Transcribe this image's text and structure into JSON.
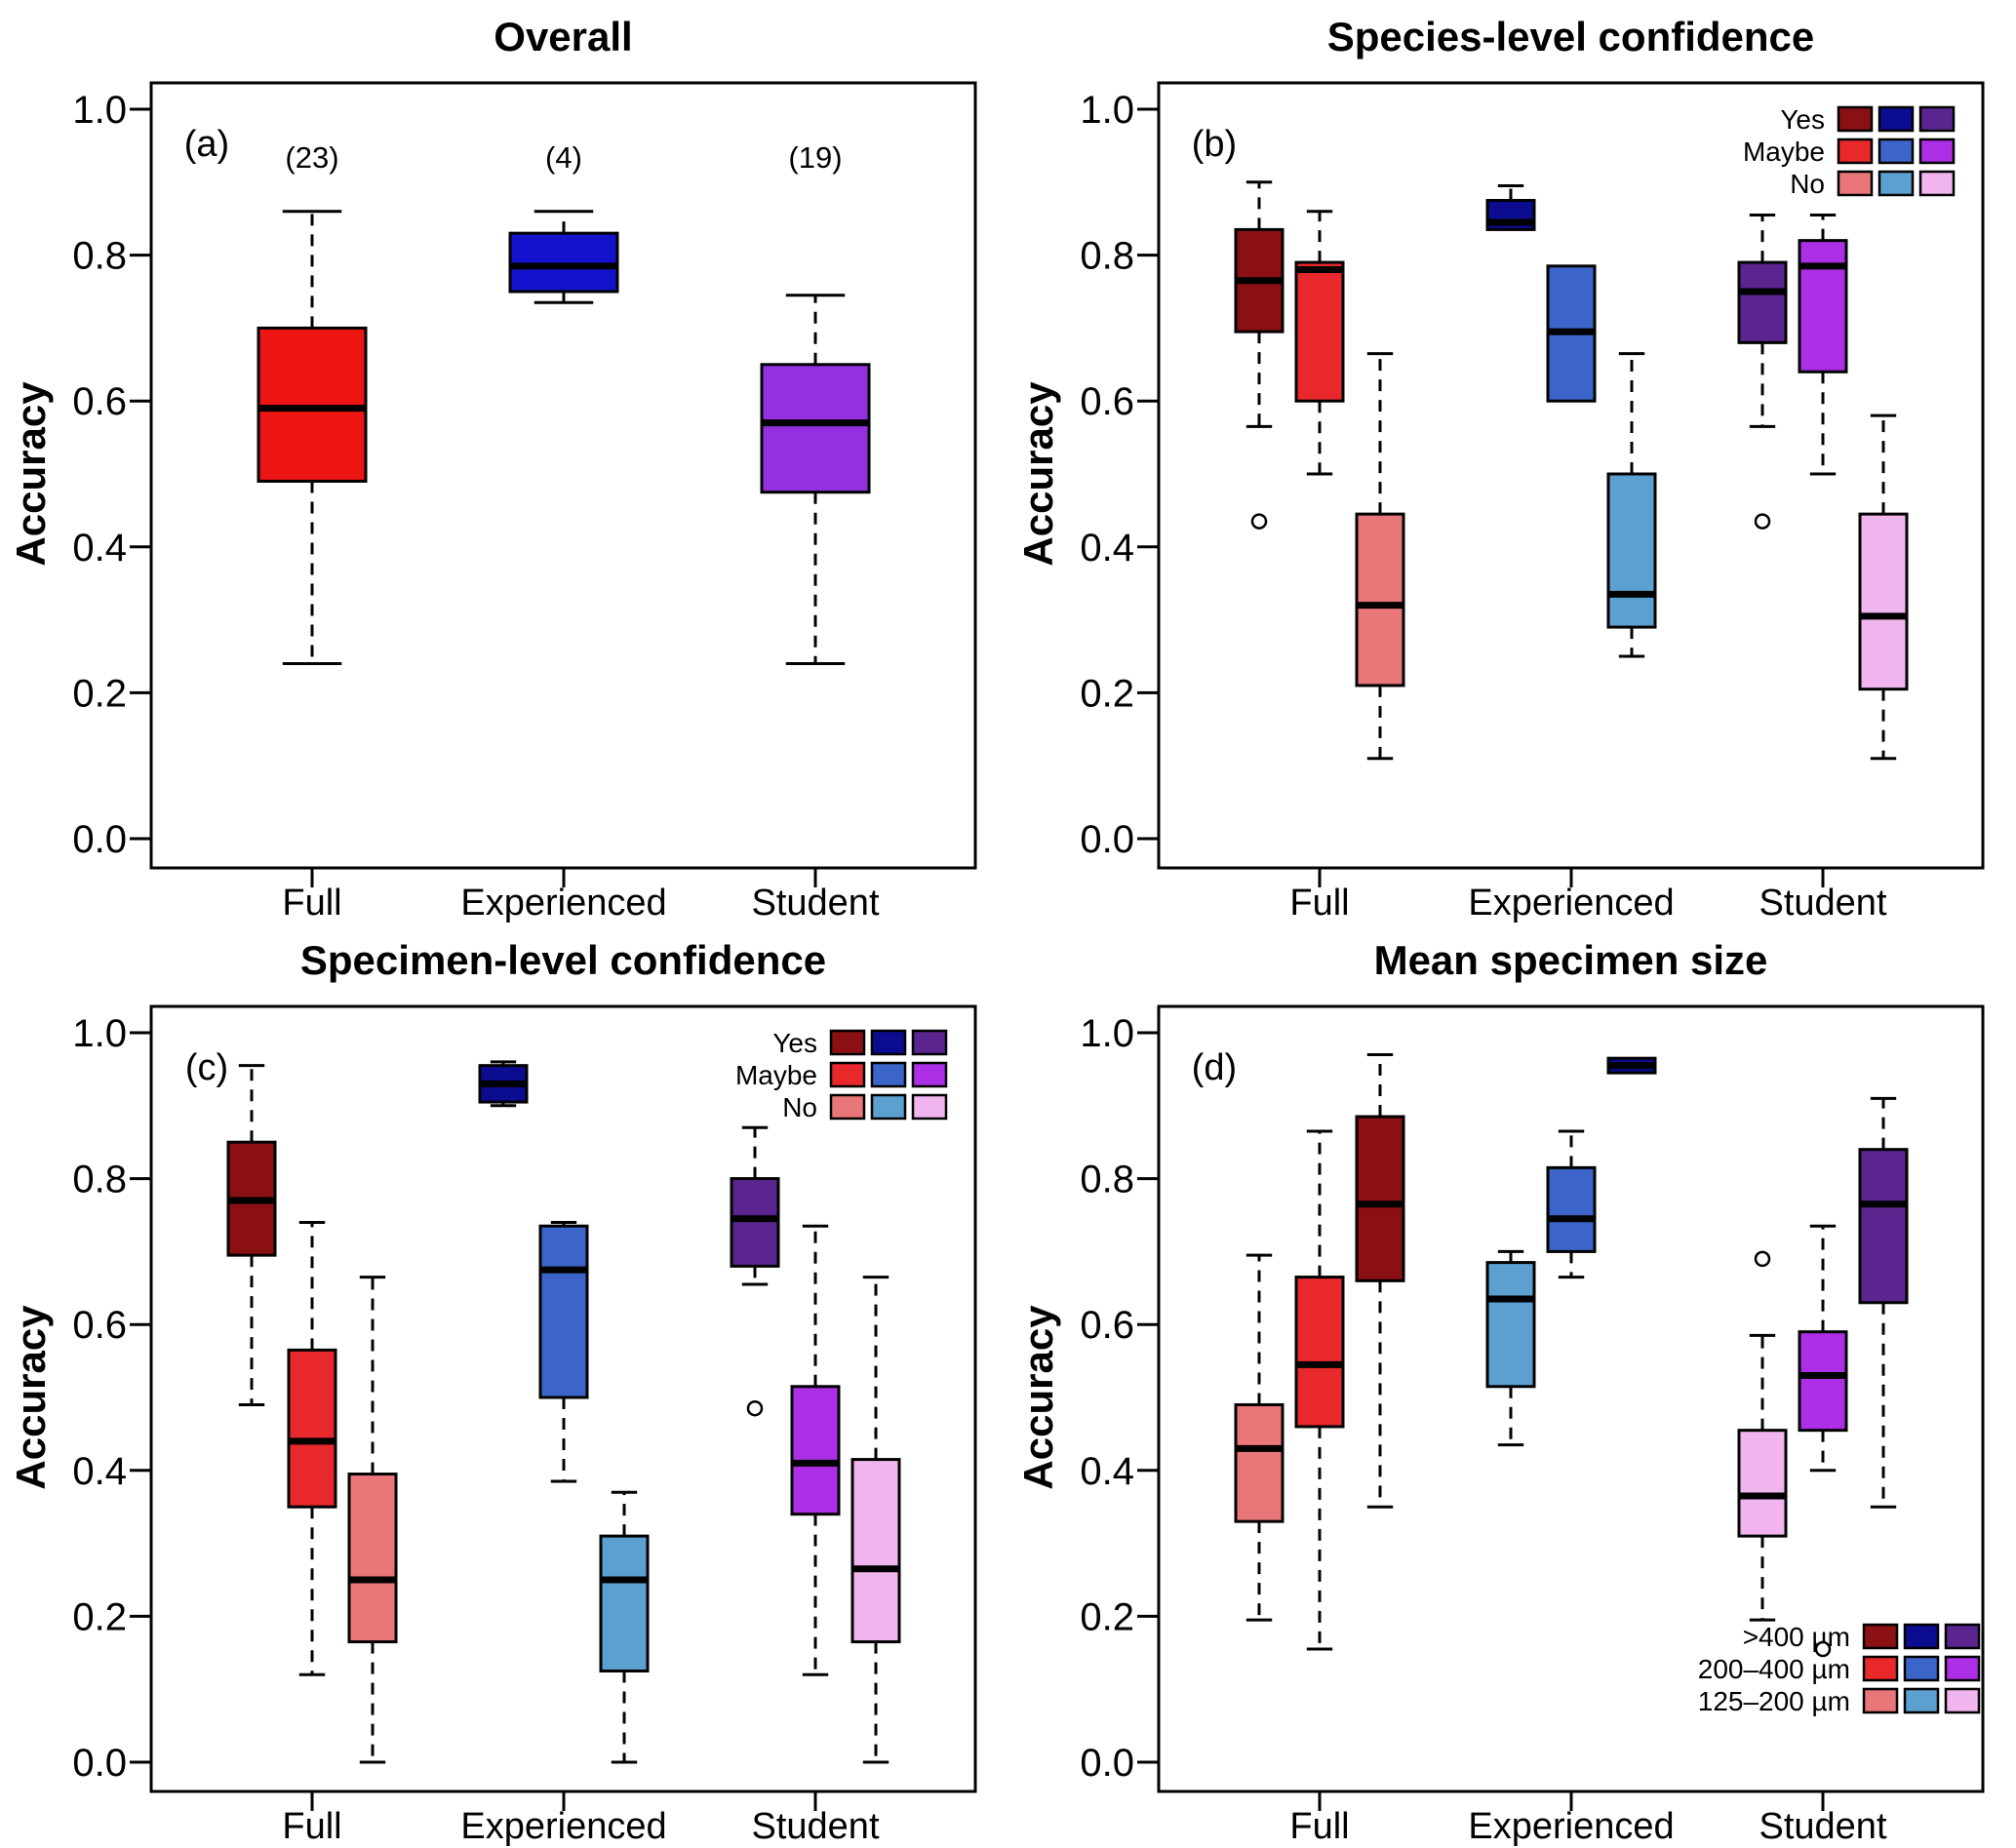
{
  "figure": {
    "type": "boxplot-figure",
    "panel_count": 4,
    "background": "#ffffff",
    "line_color": "#000000"
  },
  "palette": {
    "red_dark": "#8B1013",
    "red_mid": "#E8282B",
    "red_light": "#E97678",
    "blue_dark": "#0C0C90",
    "blue_mid": "#3C65C9",
    "blue_light": "#5CA0CF",
    "purple_dark": "#5B2590",
    "purple_mid": "#AC2FE6",
    "purple_light": "#F0B4EE",
    "panel_a_red": "#EE1515",
    "panel_a_blue": "#1313CE",
    "panel_a_purple": "#9430E0"
  },
  "chart_data": [
    {
      "id": "a",
      "type": "boxplot",
      "title": "Overall",
      "panel_label": "(a)",
      "ylabel": "Accuracy",
      "ylim": [
        0,
        1
      ],
      "yticks": [
        0,
        0.2,
        0.4,
        0.6,
        0.8,
        1.0
      ],
      "ytick_labels": [
        "0.0",
        "0.2",
        "0.4",
        "0.6",
        "0.8",
        "1.0"
      ],
      "categories": [
        "Full",
        "Experienced",
        "Student"
      ],
      "counts": [
        "(23)",
        "(4)",
        "(19)"
      ],
      "grid": false,
      "legend": null,
      "groups": [
        {
          "category": "Full",
          "boxes": [
            {
              "series": "Overall",
              "color": "#EE1515",
              "whislo": 0.24,
              "q1": 0.49,
              "med": 0.59,
              "q3": 0.7,
              "whishi": 0.86,
              "outliers": []
            }
          ]
        },
        {
          "category": "Experienced",
          "boxes": [
            {
              "series": "Overall",
              "color": "#1313CE",
              "whislo": 0.735,
              "q1": 0.75,
              "med": 0.785,
              "q3": 0.83,
              "whishi": 0.86,
              "outliers": []
            }
          ]
        },
        {
          "category": "Student",
          "boxes": [
            {
              "series": "Overall",
              "color": "#9430E0",
              "whislo": 0.24,
              "q1": 0.475,
              "med": 0.57,
              "q3": 0.65,
              "whishi": 0.745,
              "outliers": []
            }
          ]
        }
      ]
    },
    {
      "id": "b",
      "type": "boxplot",
      "title": "Species-level confidence",
      "panel_label": "(b)",
      "ylabel": "Accuracy",
      "ylim": [
        0,
        1
      ],
      "yticks": [
        0,
        0.2,
        0.4,
        0.6,
        0.8,
        1.0
      ],
      "ytick_labels": [
        "0.0",
        "0.2",
        "0.4",
        "0.6",
        "0.8",
        "1.0"
      ],
      "categories": [
        "Full",
        "Experienced",
        "Student"
      ],
      "counts": null,
      "grid": false,
      "legend": {
        "position": "top-right",
        "labels": [
          "Yes",
          "Maybe",
          "No"
        ],
        "colors": [
          [
            "#8B1013",
            "#0C0C90",
            "#5B2590"
          ],
          [
            "#E8282B",
            "#3C65C9",
            "#AC2FE6"
          ],
          [
            "#E97678",
            "#5CA0CF",
            "#F0B4EE"
          ]
        ]
      },
      "groups": [
        {
          "category": "Full",
          "boxes": [
            {
              "series": "Yes",
              "color": "#8B1013",
              "whislo": 0.565,
              "q1": 0.695,
              "med": 0.765,
              "q3": 0.835,
              "whishi": 0.9,
              "outliers": [
                0.435
              ]
            },
            {
              "series": "Maybe",
              "color": "#E8282B",
              "whislo": 0.5,
              "q1": 0.6,
              "med": 0.78,
              "q3": 0.79,
              "whishi": 0.86,
              "outliers": []
            },
            {
              "series": "No",
              "color": "#E97678",
              "whislo": 0.11,
              "q1": 0.21,
              "med": 0.32,
              "q3": 0.445,
              "whishi": 0.665,
              "outliers": []
            }
          ]
        },
        {
          "category": "Experienced",
          "boxes": [
            {
              "series": "Yes",
              "color": "#0C0C90",
              "whislo": 0.835,
              "q1": 0.835,
              "med": 0.845,
              "q3": 0.875,
              "whishi": 0.895,
              "outliers": []
            },
            {
              "series": "Maybe",
              "color": "#3C65C9",
              "whislo": 0.6,
              "q1": 0.6,
              "med": 0.695,
              "q3": 0.785,
              "whishi": 0.785,
              "outliers": []
            },
            {
              "series": "No",
              "color": "#5CA0CF",
              "whislo": 0.25,
              "q1": 0.29,
              "med": 0.335,
              "q3": 0.5,
              "whishi": 0.665,
              "outliers": []
            }
          ]
        },
        {
          "category": "Student",
          "boxes": [
            {
              "series": "Yes",
              "color": "#5B2590",
              "whislo": 0.565,
              "q1": 0.68,
              "med": 0.75,
              "q3": 0.79,
              "whishi": 0.855,
              "outliers": [
                0.435
              ]
            },
            {
              "series": "Maybe",
              "color": "#AC2FE6",
              "whislo": 0.5,
              "q1": 0.64,
              "med": 0.785,
              "q3": 0.82,
              "whishi": 0.855,
              "outliers": []
            },
            {
              "series": "No",
              "color": "#F0B4EE",
              "whislo": 0.11,
              "q1": 0.205,
              "med": 0.305,
              "q3": 0.445,
              "whishi": 0.58,
              "outliers": []
            }
          ]
        }
      ]
    },
    {
      "id": "c",
      "type": "boxplot",
      "title": "Specimen-level confidence",
      "panel_label": "(c)",
      "ylabel": "Accuracy",
      "ylim": [
        0,
        1
      ],
      "yticks": [
        0,
        0.2,
        0.4,
        0.6,
        0.8,
        1.0
      ],
      "ytick_labels": [
        "0.0",
        "0.2",
        "0.4",
        "0.6",
        "0.8",
        "1.0"
      ],
      "categories": [
        "Full",
        "Experienced",
        "Student"
      ],
      "counts": null,
      "grid": false,
      "legend": {
        "position": "top-right",
        "labels": [
          "Yes",
          "Maybe",
          "No"
        ],
        "colors": [
          [
            "#8B1013",
            "#0C0C90",
            "#5B2590"
          ],
          [
            "#E8282B",
            "#3C65C9",
            "#AC2FE6"
          ],
          [
            "#E97678",
            "#5CA0CF",
            "#F0B4EE"
          ]
        ]
      },
      "groups": [
        {
          "category": "Full",
          "boxes": [
            {
              "series": "Yes",
              "color": "#8B1013",
              "whislo": 0.49,
              "q1": 0.695,
              "med": 0.77,
              "q3": 0.85,
              "whishi": 0.955,
              "outliers": []
            },
            {
              "series": "Maybe",
              "color": "#E8282B",
              "whislo": 0.12,
              "q1": 0.35,
              "med": 0.44,
              "q3": 0.565,
              "whishi": 0.74,
              "outliers": []
            },
            {
              "series": "No",
              "color": "#E97678",
              "whislo": 0.0,
              "q1": 0.165,
              "med": 0.25,
              "q3": 0.395,
              "whishi": 0.665,
              "outliers": []
            }
          ]
        },
        {
          "category": "Experienced",
          "boxes": [
            {
              "series": "Yes",
              "color": "#0C0C90",
              "whislo": 0.9,
              "q1": 0.905,
              "med": 0.93,
              "q3": 0.955,
              "whishi": 0.96,
              "outliers": []
            },
            {
              "series": "Maybe",
              "color": "#3C65C9",
              "whislo": 0.385,
              "q1": 0.5,
              "med": 0.675,
              "q3": 0.735,
              "whishi": 0.74,
              "outliers": []
            },
            {
              "series": "No",
              "color": "#5CA0CF",
              "whislo": 0.0,
              "q1": 0.125,
              "med": 0.25,
              "q3": 0.31,
              "whishi": 0.37,
              "outliers": []
            }
          ]
        },
        {
          "category": "Student",
          "boxes": [
            {
              "series": "Yes",
              "color": "#5B2590",
              "whislo": 0.655,
              "q1": 0.68,
              "med": 0.745,
              "q3": 0.8,
              "whishi": 0.87,
              "outliers": [
                0.485
              ]
            },
            {
              "series": "Maybe",
              "color": "#AC2FE6",
              "whislo": 0.12,
              "q1": 0.34,
              "med": 0.41,
              "q3": 0.515,
              "whishi": 0.735,
              "outliers": []
            },
            {
              "series": "No",
              "color": "#F0B4EE",
              "whislo": 0.0,
              "q1": 0.165,
              "med": 0.265,
              "q3": 0.415,
              "whishi": 0.665,
              "outliers": []
            }
          ]
        }
      ]
    },
    {
      "id": "d",
      "type": "boxplot",
      "title": "Mean specimen size",
      "panel_label": "(d)",
      "ylabel": "Accuracy",
      "ylim": [
        0,
        1
      ],
      "yticks": [
        0,
        0.2,
        0.4,
        0.6,
        0.8,
        1.0
      ],
      "ytick_labels": [
        "0.0",
        "0.2",
        "0.4",
        "0.6",
        "0.8",
        "1.0"
      ],
      "categories": [
        "Full",
        "Experienced",
        "Student"
      ],
      "counts": null,
      "grid": false,
      "legend": {
        "position": "bottom-right",
        "labels": [
          ">400 µm",
          "200–400 µm",
          "125–200 µm"
        ],
        "colors": [
          [
            "#8B1013",
            "#0C0C90",
            "#5B2590"
          ],
          [
            "#E8282B",
            "#3C65C9",
            "#AC2FE6"
          ],
          [
            "#E97678",
            "#5CA0CF",
            "#F0B4EE"
          ]
        ]
      },
      "groups": [
        {
          "category": "Full",
          "boxes": [
            {
              "series": "125–200 µm",
              "color": "#E97678",
              "whislo": 0.195,
              "q1": 0.33,
              "med": 0.43,
              "q3": 0.49,
              "whishi": 0.695,
              "outliers": []
            },
            {
              "series": "200–400 µm",
              "color": "#E8282B",
              "whislo": 0.155,
              "q1": 0.46,
              "med": 0.545,
              "q3": 0.665,
              "whishi": 0.865,
              "outliers": []
            },
            {
              "series": ">400 µm",
              "color": "#8B1013",
              "whislo": 0.35,
              "q1": 0.66,
              "med": 0.765,
              "q3": 0.885,
              "whishi": 0.97,
              "outliers": []
            }
          ]
        },
        {
          "category": "Experienced",
          "boxes": [
            {
              "series": "125–200 µm",
              "color": "#5CA0CF",
              "whislo": 0.435,
              "q1": 0.515,
              "med": 0.635,
              "q3": 0.685,
              "whishi": 0.7,
              "outliers": []
            },
            {
              "series": "200–400 µm",
              "color": "#3C65C9",
              "whislo": 0.665,
              "q1": 0.7,
              "med": 0.745,
              "q3": 0.815,
              "whishi": 0.865,
              "outliers": []
            },
            {
              "series": ">400 µm",
              "color": "#0C0C90",
              "whislo": 0.945,
              "q1": 0.945,
              "med": 0.955,
              "q3": 0.965,
              "whishi": 0.965,
              "outliers": []
            }
          ]
        },
        {
          "category": "Student",
          "boxes": [
            {
              "series": "125–200 µm",
              "color": "#F0B4EE",
              "whislo": 0.195,
              "q1": 0.31,
              "med": 0.365,
              "q3": 0.455,
              "whishi": 0.585,
              "outliers": [
                0.69
              ]
            },
            {
              "series": "200–400 µm",
              "color": "#AC2FE6",
              "whislo": 0.4,
              "q1": 0.455,
              "med": 0.53,
              "q3": 0.59,
              "whishi": 0.735,
              "outliers": [
                0.155
              ]
            },
            {
              "series": ">400 µm",
              "color": "#5B2590",
              "whislo": 0.35,
              "q1": 0.63,
              "med": 0.765,
              "q3": 0.84,
              "whishi": 0.91,
              "outliers": []
            }
          ]
        }
      ]
    }
  ]
}
